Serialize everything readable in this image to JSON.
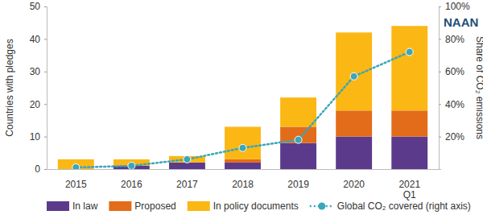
{
  "chart_data": {
    "type": "bar",
    "stacked": true,
    "grid": false,
    "legend": "bottom",
    "watermark": "NAAN",
    "y_label": "Countries with pledges",
    "y2_label": "Share of CO₂ emissions",
    "categories": [
      "2015",
      "2016",
      "2017",
      "2018",
      "2019",
      "2020",
      "2021\nQ1"
    ],
    "ylim": [
      0,
      50
    ],
    "yticks": [
      0,
      10,
      20,
      30,
      40,
      50
    ],
    "y2lim": [
      0,
      100
    ],
    "y2ticks": [
      {
        "value": 20,
        "label": "20%"
      },
      {
        "value": 40,
        "label": "40%"
      },
      {
        "value": 60,
        "label": "60%"
      },
      {
        "value": 80,
        "label": "80%"
      },
      {
        "value": 100,
        "label": "100%"
      }
    ],
    "series": [
      {
        "name": "In law",
        "type": "bar",
        "color": "#5b3a8c",
        "values": [
          0,
          1,
          2,
          2,
          8,
          10,
          10
        ]
      },
      {
        "name": "Proposed",
        "type": "bar",
        "color": "#e36c1a",
        "values": [
          0,
          0,
          0,
          1,
          5,
          8,
          8
        ]
      },
      {
        "name": "In policy documents",
        "type": "bar",
        "color": "#fbb714",
        "values": [
          3,
          2,
          2,
          10,
          9,
          24,
          26
        ]
      },
      {
        "name": "Global CO₂ covered (right axis)",
        "type": "line",
        "axis": "y2",
        "color": "#3aa6b9",
        "line_style": "dotted",
        "marker": "circle",
        "values": [
          1,
          2,
          6,
          13,
          18,
          57,
          72
        ]
      }
    ]
  }
}
